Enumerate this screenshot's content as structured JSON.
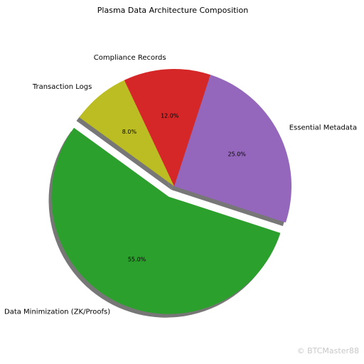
{
  "chart_data": {
    "type": "pie",
    "title": "Plasma Data Architecture Composition",
    "categories": [
      "Data Minimization (ZK/Proofs)",
      "Essential Metadata",
      "Compliance Records",
      "Transaction Logs"
    ],
    "values": [
      55,
      25,
      12,
      8
    ],
    "value_labels": [
      "55.0%",
      "25.0%",
      "12.0%",
      "8.0%"
    ],
    "colors": [
      "#2ca02c",
      "#9467bd",
      "#d62728",
      "#bcbd22"
    ],
    "explode": [
      0.1,
      0,
      0,
      0
    ],
    "start_angle": 144,
    "shadow": true
  },
  "watermark": "© BTCMaster88"
}
